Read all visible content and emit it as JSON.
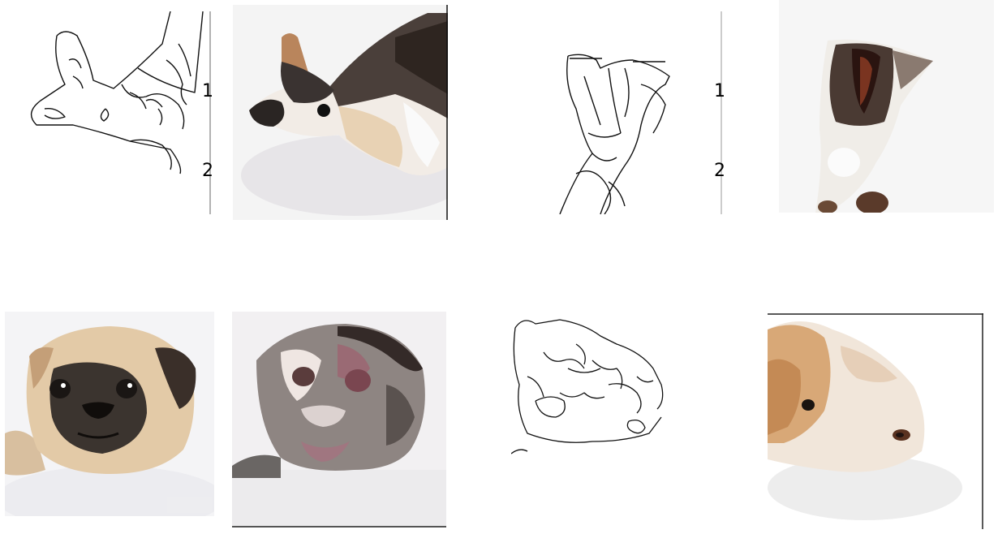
{
  "figure": {
    "panel_1": {
      "labels": [
        "1",
        "2"
      ]
    },
    "panel_3": {
      "labels": [
        "1",
        "2"
      ]
    }
  }
}
